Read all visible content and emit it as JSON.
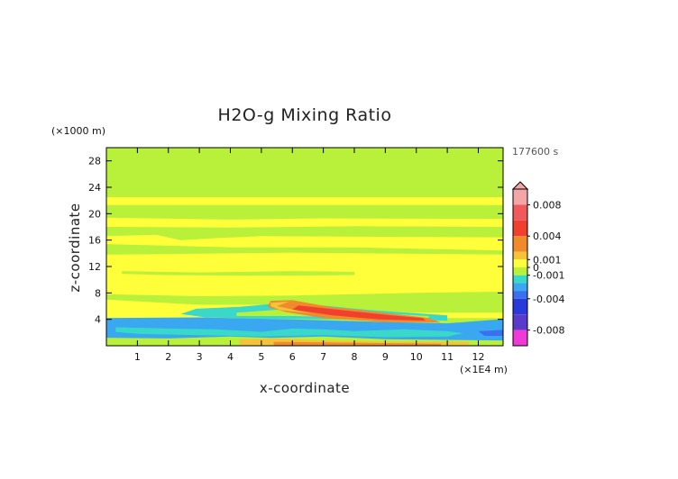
{
  "chart_data": {
    "type": "heatmap",
    "title": "H2O-g Mixing Ratio",
    "xlabel": "x-coordinate",
    "ylabel": "z-coordinate",
    "x_unit": "(×1E4 m)",
    "y_unit": "(×1000 m)",
    "time_label": "177600 s",
    "xlim": [
      0,
      12.8
    ],
    "ylim": [
      0,
      30
    ],
    "x_ticks": [
      1,
      2,
      3,
      4,
      5,
      6,
      7,
      8,
      9,
      10,
      11,
      12
    ],
    "y_ticks": [
      4,
      8,
      12,
      16,
      20,
      24,
      28
    ],
    "colorbar": {
      "labels": [
        "0.008",
        "0.004",
        "0.001",
        "0",
        "-0.001",
        "-0.004",
        "-0.008"
      ],
      "label_values": [
        0.008,
        0.004,
        0.001,
        0,
        -0.001,
        -0.004,
        -0.008
      ],
      "levels": [
        {
          "min": 0.008,
          "max": 0.01,
          "color": "#f4a6a6"
        },
        {
          "min": 0.006,
          "max": 0.008,
          "color": "#f05a5a"
        },
        {
          "min": 0.004,
          "max": 0.006,
          "color": "#f0402e"
        },
        {
          "min": 0.002,
          "max": 0.004,
          "color": "#f08a2a"
        },
        {
          "min": 0.001,
          "max": 0.002,
          "color": "#f5c23a"
        },
        {
          "min": 0.0,
          "max": 0.001,
          "color": "#ffff3a"
        },
        {
          "min": -0.001,
          "max": 0.0,
          "color": "#b8f03a"
        },
        {
          "min": -0.002,
          "max": -0.001,
          "color": "#3ad8c8"
        },
        {
          "min": -0.003,
          "max": -0.002,
          "color": "#3aa8f0"
        },
        {
          "min": -0.004,
          "max": -0.003,
          "color": "#3a70f0"
        },
        {
          "min": -0.006,
          "max": -0.004,
          "color": "#2a3ad8"
        },
        {
          "min": -0.008,
          "max": -0.006,
          "color": "#5a3ac8"
        },
        {
          "min": -0.01,
          "max": -0.008,
          "color": "#f03ad8"
        }
      ]
    },
    "background_color": "#b8f03a"
  }
}
